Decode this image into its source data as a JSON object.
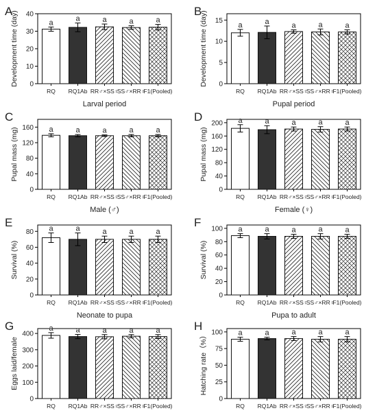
{
  "categories": [
    "RQ",
    "RQ1Ab",
    "RR♂×SS♀",
    "SS♂×RR♀",
    "F1(Pooled)"
  ],
  "fills": [
    "white",
    "dark",
    "hatch-back",
    "hatch-fwd",
    "crosshatch"
  ],
  "colors": {
    "dark": "#333333",
    "axis": "#000000",
    "bar_edge": "#111111"
  },
  "chart_data": [
    {
      "type": "bar",
      "panel": "A",
      "ylabel": "Development time (day)",
      "xlabel": "Larval period",
      "ylim": [
        0,
        40
      ],
      "yticks": [
        0,
        10,
        20,
        30,
        40
      ],
      "values": [
        31.2,
        32.2,
        32.5,
        32.1,
        32.3
      ],
      "errors": [
        1.2,
        2.5,
        1.6,
        1.0,
        1.6
      ],
      "labels": [
        "a",
        "a",
        "a",
        "a",
        "a"
      ]
    },
    {
      "type": "bar",
      "panel": "B",
      "ylabel": "Development time (day)",
      "xlabel": "Pupal period",
      "ylim": [
        0,
        16.5
      ],
      "yticks": [
        0,
        5,
        10,
        15
      ],
      "values": [
        12.0,
        12.1,
        12.3,
        12.2,
        12.2
      ],
      "errors": [
        0.8,
        1.5,
        0.4,
        0.7,
        0.5
      ],
      "labels": [
        "a",
        "a",
        "a",
        "a",
        "a"
      ]
    },
    {
      "type": "bar",
      "panel": "C",
      "ylabel": "Pupal mass (mg)",
      "xlabel": "Male (♂)",
      "ylim": [
        0,
        180
      ],
      "yticks": [
        0,
        40,
        80,
        120,
        160
      ],
      "values": [
        139,
        138,
        138,
        138,
        138
      ],
      "errors": [
        4,
        3,
        2,
        3,
        3
      ],
      "labels": [
        "a",
        "a",
        "a",
        "a",
        "a"
      ]
    },
    {
      "type": "bar",
      "panel": "D",
      "ylabel": "Pupal mass (mg)",
      "xlabel": "Female (♀)",
      "ylim": [
        0,
        210
      ],
      "yticks": [
        0,
        40,
        80,
        120,
        160,
        200
      ],
      "values": [
        183,
        179,
        181,
        180,
        181
      ],
      "errors": [
        11,
        12,
        6,
        8,
        6
      ],
      "labels": [
        "a",
        "a",
        "a",
        "a",
        "a"
      ]
    },
    {
      "type": "bar",
      "panel": "E",
      "ylabel": "Survival (%)",
      "xlabel": "Neonate to pupa",
      "ylim": [
        0,
        88
      ],
      "yticks": [
        0,
        20,
        40,
        60,
        80
      ],
      "values": [
        72,
        70,
        70,
        70,
        70
      ],
      "errors": [
        6,
        8,
        4,
        4,
        4
      ],
      "labels": [
        "a",
        "a",
        "a",
        "a",
        "a"
      ]
    },
    {
      "type": "bar",
      "panel": "F",
      "ylabel": "Survival (%)",
      "xlabel": "Pupa to adult",
      "ylim": [
        0,
        105
      ],
      "yticks": [
        0,
        20,
        40,
        60,
        80,
        100
      ],
      "values": [
        89,
        88,
        88,
        88,
        88
      ],
      "errors": [
        3,
        4,
        3,
        4,
        3
      ],
      "labels": [
        "a",
        "a",
        "a",
        "a",
        "a"
      ]
    },
    {
      "type": "bar",
      "panel": "G",
      "ylabel": "Eggs laid/female",
      "xlabel": "Fecundity",
      "ylim": [
        0,
        430
      ],
      "yticks": [
        0,
        100,
        200,
        300,
        400
      ],
      "values": [
        388,
        381,
        380,
        383,
        381
      ],
      "errors": [
        17,
        13,
        13,
        10,
        12
      ],
      "labels": [
        "a",
        "a",
        "a",
        "a",
        "a"
      ]
    },
    {
      "type": "bar",
      "panel": "H",
      "ylabel": "Hatching rate（%）",
      "xlabel": "Egg viability",
      "ylim": [
        0,
        105
      ],
      "yticks": [
        0,
        25,
        50,
        75,
        100
      ],
      "values": [
        89,
        90,
        90,
        89,
        89
      ],
      "errors": [
        3,
        2,
        3,
        4,
        4
      ],
      "labels": [
        "a",
        "a",
        "a",
        "a",
        "a"
      ]
    }
  ]
}
